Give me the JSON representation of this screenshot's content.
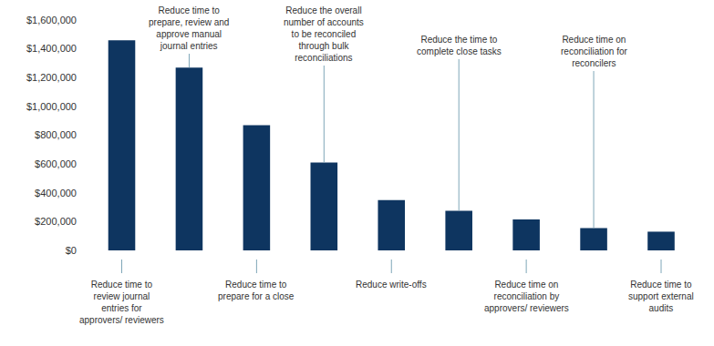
{
  "chart_data": {
    "type": "bar",
    "categories": [
      "Reduce time to review journal entries for approvers/ reviewers",
      "Reduce time to prepare, review and approve manual journal entries",
      "Reduce time to prepare for a close",
      "Reduce the overall number of accounts to be reconciled through bulk reconciliations",
      "Reduce write-offs",
      "Reduce the time to complete close tasks",
      "Reduce time on reconciliation by approvers/ reviewers",
      "Reduce time on reconciliation for reconcilers",
      "Reduce time to support external audits"
    ],
    "values": [
      1460000,
      1270000,
      870000,
      610000,
      350000,
      275000,
      215000,
      155000,
      130000
    ],
    "color": "#0e3560",
    "ylim": [
      0,
      1600000
    ],
    "yticks": [
      {
        "value": 0,
        "label": "$0"
      },
      {
        "value": 200000,
        "label": "$200,000"
      },
      {
        "value": 400000,
        "label": "$400,000"
      },
      {
        "value": 600000,
        "label": "$600,000"
      },
      {
        "value": 800000,
        "label": "$800,000"
      },
      {
        "value": 1000000,
        "label": "$1,000,000"
      },
      {
        "value": 1200000,
        "label": "$1,200,000"
      },
      {
        "value": 1400000,
        "label": "$1,400,000"
      },
      {
        "value": 1600000,
        "label": "$1,600,000"
      }
    ],
    "grid": false,
    "tick_labels": "y"
  }
}
